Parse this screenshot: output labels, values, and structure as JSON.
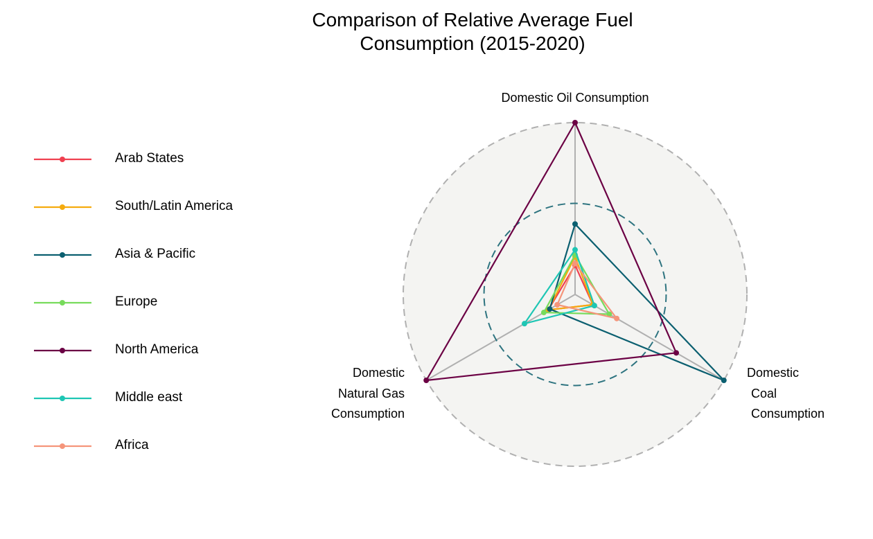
{
  "chart_data": {
    "type": "radar",
    "title": "Comparison of Relative Average Fuel Consumption (2015-2020)",
    "title_lines": [
      "Comparison of Relative Average Fuel",
      "Consumption (2015-2020)"
    ],
    "axes": [
      {
        "name": "Domestic Oil Consumption",
        "label_lines": [
          "Domestic Oil Consumption"
        ]
      },
      {
        "name": "Domestic Coal Consumption",
        "label_lines": [
          "Domestic",
          "Coal",
          "Consumption"
        ]
      },
      {
        "name": "Domestic Natural Gas Consumption",
        "label_lines": [
          "Domestic",
          "Natural Gas",
          "Consumption"
        ]
      }
    ],
    "range": [
      0,
      1
    ],
    "grid_rings": [
      0.53,
      1.0
    ],
    "legend_placement": "left",
    "series": [
      {
        "name": "Arab States",
        "color": "#ef4050",
        "values": [
          0.17,
          0.12,
          0.18
        ]
      },
      {
        "name": "South/Latin America",
        "color": "#f5ab0e",
        "values": [
          0.22,
          0.12,
          0.18
        ]
      },
      {
        "name": "Asia & Pacific",
        "color": "#0b5f70",
        "values": [
          0.41,
          1.0,
          0.17
        ]
      },
      {
        "name": "Europe",
        "color": "#77db5b",
        "values": [
          0.23,
          0.23,
          0.21
        ]
      },
      {
        "name": "North America",
        "color": "#6b0044",
        "values": [
          1.0,
          0.68,
          1.0
        ]
      },
      {
        "name": "Middle east",
        "color": "#1ec6b4",
        "values": [
          0.26,
          0.13,
          0.34
        ]
      },
      {
        "name": "Africa",
        "color": "#f5957a",
        "values": [
          0.18,
          0.28,
          0.12
        ]
      }
    ]
  }
}
